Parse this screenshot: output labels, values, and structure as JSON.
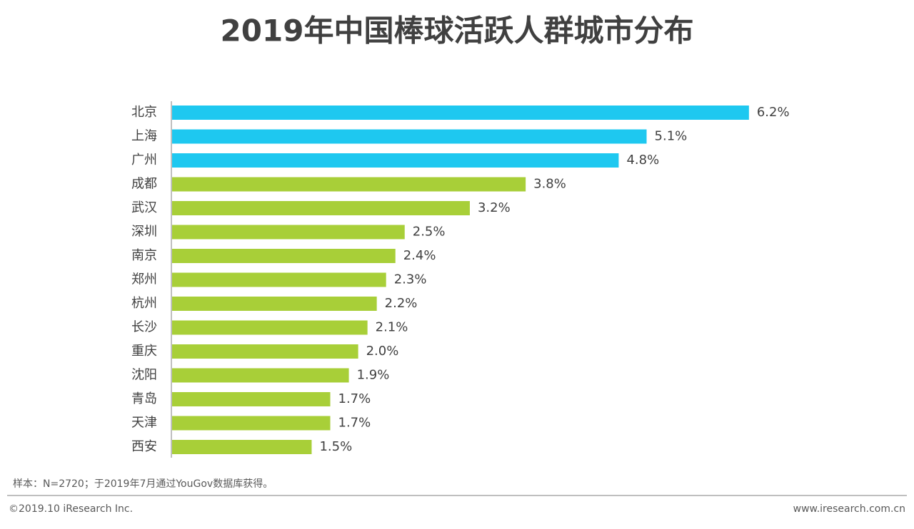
{
  "chart_data": {
    "type": "bar",
    "orientation": "horizontal",
    "title": "2019年中国棒球活跃人群城市分布",
    "categories": [
      "北京",
      "上海",
      "广州",
      "成都",
      "武汉",
      "深圳",
      "南京",
      "郑州",
      "杭州",
      "长沙",
      "重庆",
      "沈阳",
      "青岛",
      "天津",
      "西安"
    ],
    "values": [
      6.2,
      5.1,
      4.8,
      3.8,
      3.2,
      2.5,
      2.4,
      2.3,
      2.2,
      2.1,
      2.0,
      1.9,
      1.7,
      1.7,
      1.5
    ],
    "value_labels": [
      "6.2%",
      "5.1%",
      "4.8%",
      "3.8%",
      "3.2%",
      "2.5%",
      "2.4%",
      "2.3%",
      "2.2%",
      "2.1%",
      "2.0%",
      "1.9%",
      "1.7%",
      "1.7%",
      "1.5%"
    ],
    "colors": [
      "#1ec8f0",
      "#1ec8f0",
      "#1ec8f0",
      "#a8cf38",
      "#a8cf38",
      "#a8cf38",
      "#a8cf38",
      "#a8cf38",
      "#a8cf38",
      "#a8cf38",
      "#a8cf38",
      "#a8cf38",
      "#a8cf38",
      "#a8cf38",
      "#a8cf38"
    ],
    "note": "样本：N=2720；于2019年7月通过YouGov数据库获得。"
  },
  "footer": {
    "copyright": "©2019.10 iResearch Inc.",
    "website": "www.iresearch.com.cn"
  }
}
